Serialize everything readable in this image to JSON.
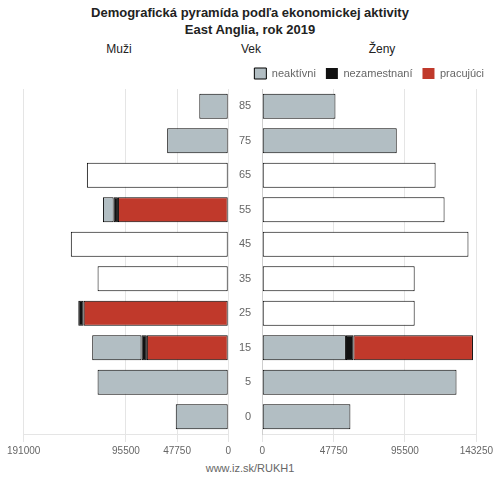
{
  "title": [
    "Demografická pyramída podľa ekonomickej aktivity",
    "East Anglia, rok 2019"
  ],
  "footer": "www.iz.sk/RUKH1",
  "chart_data": [
    {
      "type": "bar",
      "title": "Muži",
      "orientation": "horizontal",
      "stacked": true,
      "grid": "x",
      "tick_labels": "x",
      "categories": [
        "85",
        "75",
        "65",
        "55",
        "45",
        "35",
        "25",
        "15",
        "5",
        "0"
      ],
      "xlim": [
        191000,
        0
      ],
      "xticks": [
        191000,
        95500,
        47750,
        0
      ],
      "series": [
        {
          "name": "pracujúci",
          "color": "#c0392b",
          "values": [
            0,
            0,
            0,
            103000,
            0,
            0,
            135000,
            76000,
            0,
            0
          ]
        },
        {
          "name": "nezamestnaní",
          "color": "#111111",
          "values": [
            0,
            0,
            0,
            4000,
            0,
            0,
            5000,
            5000,
            0,
            0
          ]
        },
        {
          "name": "neaktívni",
          "color": "#b2bec3",
          "values": [
            27000,
            57000,
            0,
            10000,
            0,
            0,
            0,
            46000,
            122000,
            49000
          ]
        },
        {
          "color": "#ffffff",
          "values": [
            0,
            0,
            132000,
            0,
            147000,
            122000,
            0,
            0,
            0,
            0
          ]
        }
      ]
    },
    {
      "type": "bar",
      "title": "Ženy",
      "ylabel": "Vek",
      "orientation": "horizontal",
      "stacked": true,
      "grid": "x",
      "tick_labels": true,
      "legend": "upper right",
      "categories": [
        "85",
        "75",
        "65",
        "55",
        "45",
        "35",
        "25",
        "15",
        "5",
        "0"
      ],
      "xlim": [
        0,
        143250
      ],
      "xticks": [
        0,
        47750,
        95500,
        143250
      ],
      "series": [
        {
          "name": "neaktívni",
          "color": "#b2bec3",
          "values": [
            49000,
            90000,
            0,
            0,
            0,
            0,
            0,
            56000,
            130000,
            59000
          ]
        },
        {
          "name": "nezamestnaní",
          "color": "#111111",
          "values": [
            0,
            0,
            0,
            0,
            0,
            0,
            0,
            5000,
            0,
            0
          ]
        },
        {
          "name": "pracujúci",
          "color": "#c0392b",
          "values": [
            0,
            0,
            0,
            0,
            0,
            0,
            0,
            80000,
            0,
            0
          ]
        },
        {
          "color": "#ffffff",
          "values": [
            0,
            0,
            116000,
            122000,
            138000,
            102000,
            102000,
            0,
            0,
            0
          ]
        }
      ]
    }
  ]
}
